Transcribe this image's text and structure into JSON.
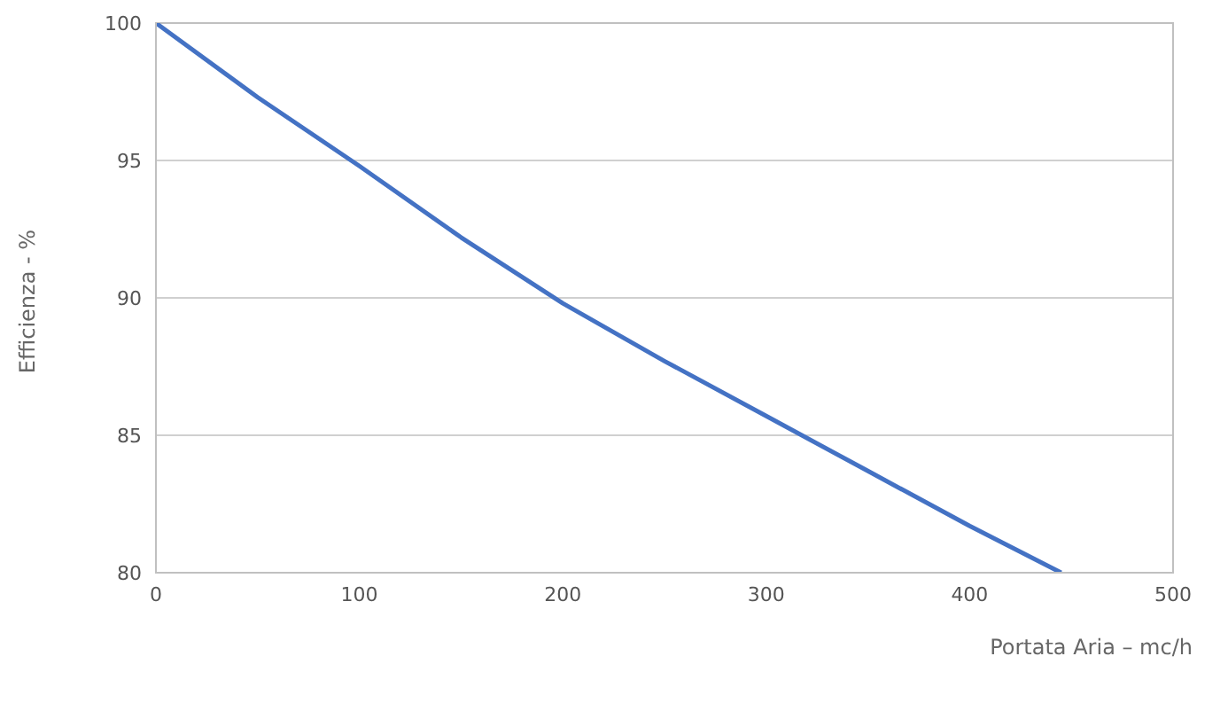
{
  "chart_data": {
    "type": "line",
    "xlabel": "Portata Aria – mc/h",
    "ylabel": "Efficienza - %",
    "x": [
      0,
      50,
      100,
      150,
      200,
      250,
      300,
      350,
      400,
      445
    ],
    "series": [
      {
        "color": "#4472c4",
        "values": [
          100,
          97.3,
          94.8,
          92.2,
          89.8,
          87.7,
          85.7,
          83.7,
          81.7,
          80
        ]
      }
    ],
    "xlim": [
      0,
      500
    ],
    "xticks": [
      0,
      100,
      200,
      300,
      400,
      500
    ],
    "ylim": [
      80,
      100
    ],
    "yticks": [
      80,
      85,
      90,
      95,
      100
    ],
    "grid": "y",
    "marker": "none",
    "line_style": "solid"
  }
}
